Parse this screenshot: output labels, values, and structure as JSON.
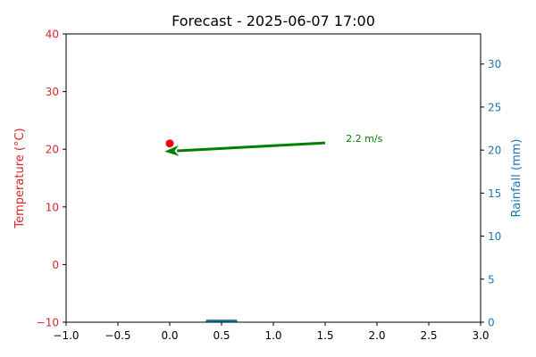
{
  "chart_data": {
    "type": "combo",
    "title": "Forecast - 2025-06-07 17:00",
    "xlim": [
      -1.0,
      3.0
    ],
    "x_ticks": [
      -1.0,
      -0.5,
      0.0,
      0.5,
      1.0,
      1.5,
      2.0,
      2.5,
      3.0
    ],
    "x_tick_labels": [
      "−1.0",
      "−0.5",
      "0.0",
      "0.5",
      "1.0",
      "1.5",
      "2.0",
      "2.5",
      "3.0"
    ],
    "left_axis": {
      "label": "Temperature (°C)",
      "ylim": [
        -10,
        40
      ],
      "ticks": [
        -10,
        0,
        10,
        20,
        30,
        40
      ],
      "tick_labels": [
        "−10",
        "0",
        "10",
        "20",
        "30",
        "40"
      ],
      "color": "#d62728"
    },
    "right_axis": {
      "label": "Rainfall (mm)",
      "ylim": [
        0,
        33.5
      ],
      "ticks": [
        0,
        5,
        10,
        15,
        20,
        25,
        30
      ],
      "tick_labels": [
        "0",
        "5",
        "10",
        "15",
        "20",
        "25",
        "30"
      ],
      "color": "#1f77b4"
    },
    "temperature_point": {
      "x": 0.0,
      "y": 21.0,
      "color": "#ff0000"
    },
    "rainfall_bar": {
      "x": 0.5,
      "width": 0.3,
      "value": 0.3,
      "color": "#1f77b4"
    },
    "wind_arrow": {
      "from": {
        "x": 1.5,
        "y": 21.1
      },
      "to": {
        "x": -0.05,
        "y": 19.6
      },
      "label": "2.2 m/s",
      "label_pos": {
        "x": 1.7,
        "y": 21.1
      },
      "color": "#008000"
    },
    "grid": false
  }
}
